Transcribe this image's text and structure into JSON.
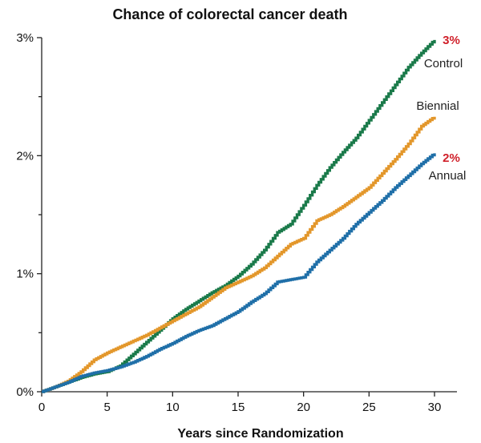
{
  "chart_data": {
    "type": "line",
    "title": "Chance of colorectal cancer death",
    "xlabel": "Years since Randomization",
    "ylabel": "",
    "xlim": [
      0,
      30
    ],
    "ylim": [
      0,
      3
    ],
    "x_ticks": [
      0,
      5,
      10,
      15,
      20,
      25,
      30
    ],
    "x_tick_labels": [
      "0",
      "5",
      "10",
      "15",
      "20",
      "25",
      "30"
    ],
    "y_major_ticks": [
      0,
      1,
      2,
      3
    ],
    "y_tick_labels": [
      "0%",
      "1%",
      "2%",
      "3%"
    ],
    "y_minor_ticks": [
      0.5,
      1.5,
      2.5
    ],
    "grid": false,
    "legend": "inline labels at line ends",
    "series": [
      {
        "name": "Control",
        "color": "#1a7a4a",
        "end_value_label": "3%",
        "x": [
          0,
          1,
          2,
          3,
          4,
          5,
          6,
          7,
          8,
          9,
          10,
          11,
          12,
          13,
          14,
          15,
          16,
          17,
          18,
          19,
          20,
          21,
          22,
          23,
          24,
          25,
          26,
          27,
          28,
          29,
          30
        ],
        "y": [
          0,
          0.04,
          0.08,
          0.12,
          0.15,
          0.17,
          0.22,
          0.32,
          0.42,
          0.52,
          0.62,
          0.7,
          0.77,
          0.84,
          0.9,
          0.98,
          1.08,
          1.2,
          1.35,
          1.42,
          1.58,
          1.75,
          1.9,
          2.03,
          2.15,
          2.3,
          2.45,
          2.6,
          2.75,
          2.87,
          2.98
        ]
      },
      {
        "name": "Biennial",
        "color": "#e3972b",
        "end_value_label": "",
        "x": [
          0,
          1,
          2,
          3,
          4,
          5,
          6,
          7,
          8,
          9,
          10,
          11,
          12,
          13,
          14,
          15,
          16,
          17,
          18,
          19,
          20,
          21,
          22,
          23,
          24,
          25,
          26,
          27,
          28,
          29,
          30
        ],
        "y": [
          0,
          0.04,
          0.09,
          0.17,
          0.27,
          0.33,
          0.38,
          0.43,
          0.48,
          0.54,
          0.6,
          0.66,
          0.72,
          0.8,
          0.88,
          0.93,
          0.98,
          1.05,
          1.15,
          1.25,
          1.3,
          1.45,
          1.5,
          1.57,
          1.65,
          1.73,
          1.85,
          1.97,
          2.1,
          2.25,
          2.33
        ]
      },
      {
        "name": "Annual",
        "color": "#1f6fa8",
        "end_value_label": "2%",
        "x": [
          0,
          1,
          2,
          3,
          4,
          5,
          6,
          7,
          8,
          9,
          10,
          11,
          12,
          13,
          14,
          15,
          16,
          17,
          18,
          19,
          20,
          21,
          22,
          23,
          24,
          25,
          26,
          27,
          28,
          29,
          30
        ],
        "y": [
          0,
          0.04,
          0.08,
          0.13,
          0.16,
          0.18,
          0.21,
          0.25,
          0.3,
          0.36,
          0.41,
          0.47,
          0.52,
          0.56,
          0.62,
          0.68,
          0.76,
          0.83,
          0.93,
          0.95,
          0.97,
          1.1,
          1.2,
          1.3,
          1.42,
          1.52,
          1.62,
          1.73,
          1.83,
          1.93,
          2.02
        ]
      }
    ]
  }
}
